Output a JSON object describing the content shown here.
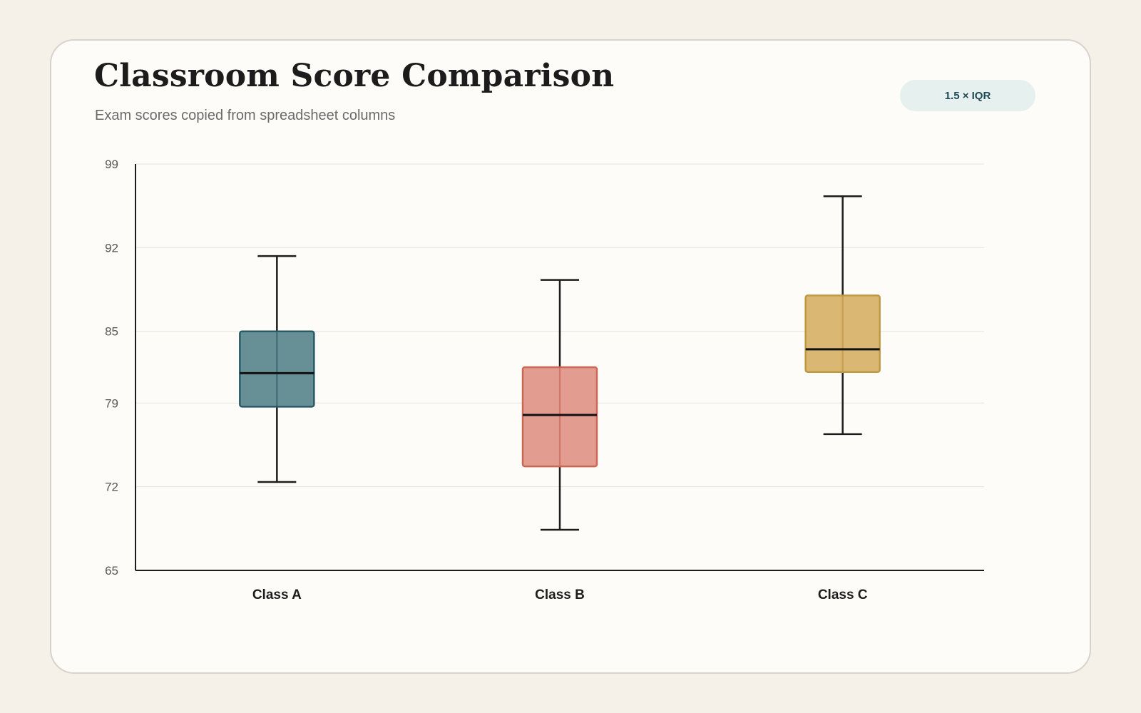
{
  "header": {
    "title": "Classroom Score Comparison",
    "subtitle": "Exam scores copied from spreadsheet columns",
    "badge": "1.5 × IQR"
  },
  "chart_data": {
    "type": "box",
    "title": "Classroom Score Comparison",
    "subtitle": "Exam scores copied from spreadsheet columns",
    "xlabel": "",
    "ylabel": "",
    "ylim": [
      65,
      99
    ],
    "yticks": [
      99,
      92,
      85,
      79,
      72,
      65
    ],
    "grid": true,
    "categories": [
      "Class A",
      "Class B",
      "Class C"
    ],
    "series": [
      {
        "category": "Class A",
        "whisker_low": 72.4,
        "q1": 78.7,
        "median": 81.5,
        "q3": 85.0,
        "whisker_high": 91.3,
        "color": "#5e8990",
        "stroke": "#2a5a66"
      },
      {
        "category": "Class B",
        "whisker_low": 68.4,
        "q1": 73.7,
        "median": 78.0,
        "q3": 82.0,
        "whisker_high": 89.3,
        "color": "#e0978a",
        "stroke": "#cc6655"
      },
      {
        "category": "Class C",
        "whisker_low": 76.4,
        "q1": 81.6,
        "median": 83.5,
        "q3": 88.0,
        "whisker_high": 96.3,
        "color": "#d9b36d",
        "stroke": "#c0993f"
      }
    ]
  }
}
